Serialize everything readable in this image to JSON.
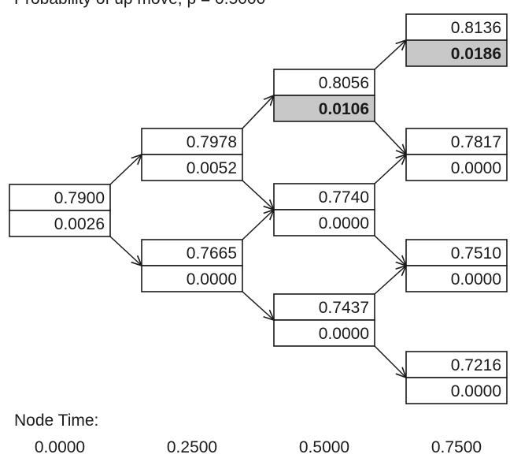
{
  "header": {
    "probability_label": "Probability of up move, p = 0.5000"
  },
  "colors": {
    "highlight": "#c8c8c8",
    "stroke": "#1a1a1a"
  },
  "tree": {
    "nodes": [
      {
        "id": "n00",
        "step": 0,
        "values": [
          "0.7900",
          "0.0026"
        ],
        "highlight": false
      },
      {
        "id": "n10",
        "step": 1,
        "values": [
          "0.7978",
          "0.0052"
        ],
        "highlight": false
      },
      {
        "id": "n11",
        "step": 1,
        "values": [
          "0.7665",
          "0.0000"
        ],
        "highlight": false
      },
      {
        "id": "n20",
        "step": 2,
        "values": [
          "0.8056",
          "0.0106"
        ],
        "highlight": true
      },
      {
        "id": "n21",
        "step": 2,
        "values": [
          "0.7740",
          "0.0000"
        ],
        "highlight": false
      },
      {
        "id": "n22",
        "step": 2,
        "values": [
          "0.7437",
          "0.0000"
        ],
        "highlight": false
      },
      {
        "id": "n30",
        "step": 3,
        "values": [
          "0.8136",
          "0.0186"
        ],
        "highlight": true
      },
      {
        "id": "n31",
        "step": 3,
        "values": [
          "0.7817",
          "0.0000"
        ],
        "highlight": false
      },
      {
        "id": "n32",
        "step": 3,
        "values": [
          "0.7510",
          "0.0000"
        ],
        "highlight": false
      },
      {
        "id": "n33",
        "step": 3,
        "values": [
          "0.7216",
          "0.0000"
        ],
        "highlight": false
      }
    ],
    "edges": [
      [
        "n00",
        "n10"
      ],
      [
        "n00",
        "n11"
      ],
      [
        "n10",
        "n20"
      ],
      [
        "n10",
        "n21"
      ],
      [
        "n11",
        "n21"
      ],
      [
        "n11",
        "n22"
      ],
      [
        "n20",
        "n30"
      ],
      [
        "n20",
        "n31"
      ],
      [
        "n21",
        "n31"
      ],
      [
        "n21",
        "n32"
      ],
      [
        "n22",
        "n32"
      ],
      [
        "n22",
        "n33"
      ]
    ]
  },
  "node_time": {
    "label": "Node Time:",
    "values": [
      "0.0000",
      "0.2500",
      "0.5000",
      "0.7500"
    ]
  }
}
